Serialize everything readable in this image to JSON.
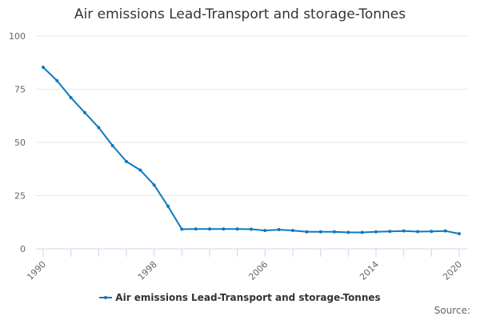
{
  "chart_data": {
    "type": "line",
    "title": "Air emissions Lead-Transport and storage-Tonnes",
    "xlabel": "",
    "ylabel": "",
    "ylim": [
      0,
      100
    ],
    "yticks": [
      0,
      25,
      50,
      75,
      100
    ],
    "xticks_labeled": [
      "1990",
      "1998",
      "2006",
      "2014",
      "2020"
    ],
    "grid": true,
    "legend_position": "bottom",
    "x": [
      1990,
      1991,
      1992,
      1993,
      1994,
      1995,
      1996,
      1997,
      1998,
      1999,
      2000,
      2001,
      2002,
      2003,
      2004,
      2005,
      2006,
      2007,
      2008,
      2009,
      2010,
      2011,
      2012,
      2013,
      2014,
      2015,
      2016,
      2017,
      2018,
      2019,
      2020
    ],
    "series": [
      {
        "name": "Air emissions Lead-Transport and storage-Tonnes",
        "color": "#0f78c0",
        "values": [
          85.3,
          79.0,
          71.0,
          64.0,
          57.0,
          48.5,
          41.0,
          37.0,
          30.0,
          20.0,
          9.2,
          9.3,
          9.3,
          9.3,
          9.3,
          9.2,
          8.6,
          9.0,
          8.6,
          8.0,
          8.0,
          8.0,
          7.7,
          7.7,
          8.0,
          8.2,
          8.4,
          8.1,
          8.2,
          8.4,
          7.1
        ]
      }
    ]
  },
  "legend": {
    "label": "Air emissions Lead-Transport and storage-Tonnes",
    "color": "#0f78c0"
  },
  "footer": {
    "source": "Source:"
  }
}
